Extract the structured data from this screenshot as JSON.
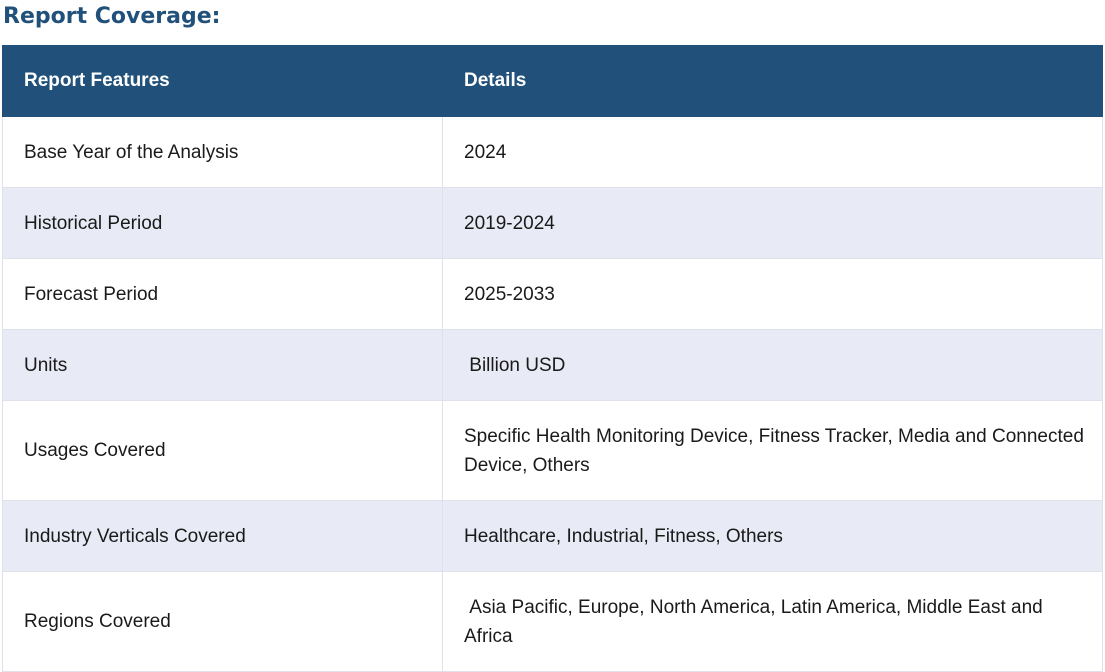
{
  "heading": "Report Coverage:",
  "table": {
    "headers": [
      "Report Features",
      "Details"
    ],
    "rows": [
      {
        "feature": "Base Year of the Analysis",
        "detail": "2024"
      },
      {
        "feature": "Historical Period",
        "detail": "2019-2024"
      },
      {
        "feature": "Forecast Period",
        "detail": "2025-2033"
      },
      {
        "feature": "Units",
        "detail": " Billion USD"
      },
      {
        "feature": "Usages Covered",
        "detail": "Specific Health Monitoring Device, Fitness Tracker, Media and Connected Device, Others"
      },
      {
        "feature": "Industry Verticals Covered",
        "detail": "Healthcare, Industrial, Fitness, Others"
      },
      {
        "feature": "Regions Covered",
        "detail": " Asia Pacific, Europe, North America, Latin America, Middle East and Africa"
      }
    ]
  },
  "colors": {
    "heading": "#21517a",
    "header_bg": "#21517a",
    "alt_row_bg": "#e8eaf5"
  }
}
